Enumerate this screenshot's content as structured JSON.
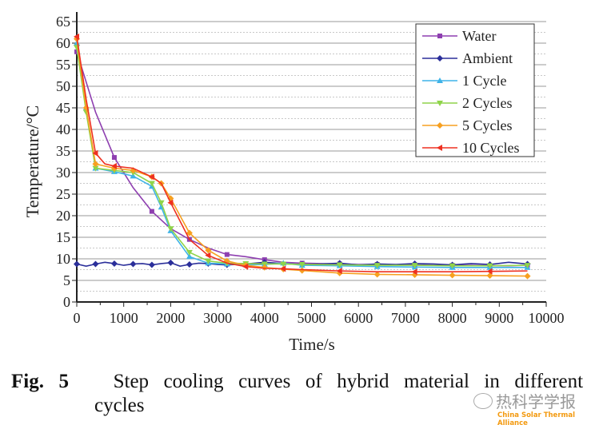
{
  "chart_data": {
    "type": "line",
    "title": "",
    "xlabel": "Time/s",
    "ylabel": "Temperature/°C",
    "xlim": [
      0,
      10000
    ],
    "ylim": [
      0,
      65
    ],
    "xticks": [
      0,
      1000,
      2000,
      3000,
      4000,
      5000,
      6000,
      7000,
      8000,
      9000,
      10000
    ],
    "yticks": [
      0,
      5,
      10,
      15,
      20,
      25,
      30,
      35,
      40,
      45,
      50,
      55,
      60,
      65
    ],
    "grid": true,
    "legend_position": "top-right",
    "series": [
      {
        "name": "Water",
        "color": "#8e3fb0",
        "marker": "square",
        "x": [
          0,
          400,
          800,
          1200,
          1600,
          2000,
          2400,
          2800,
          3200,
          3600,
          4000,
          4400,
          4800,
          5200,
          5600,
          6000,
          6400,
          6800,
          7200,
          7600,
          8000,
          8400,
          8800,
          9200,
          9600
        ],
        "y": [
          58,
          44,
          33.5,
          26.5,
          21,
          17,
          14.5,
          12.5,
          11,
          10.5,
          9.8,
          9.2,
          9,
          8.9,
          8.8,
          8.7,
          8.7,
          8.6,
          8.6,
          8.5,
          8.5,
          8.5,
          8.4,
          8.4,
          8.5
        ]
      },
      {
        "name": "Ambient",
        "color": "#2b2f9a",
        "marker": "diamond",
        "x": [
          0,
          200,
          400,
          600,
          800,
          1000,
          1200,
          1400,
          1600,
          1800,
          2000,
          2200,
          2400,
          2600,
          2800,
          3000,
          3200,
          3600,
          4000,
          4400,
          4800,
          5200,
          5600,
          6000,
          6400,
          6800,
          7200,
          7600,
          8000,
          8400,
          8800,
          9200,
          9600
        ],
        "y": [
          8.8,
          8.3,
          8.8,
          9.2,
          8.9,
          8.5,
          8.8,
          8.9,
          8.6,
          8.9,
          9.1,
          8.3,
          8.7,
          9.0,
          8.9,
          8.7,
          8.6,
          8.8,
          9.2,
          8.9,
          8.7,
          8.8,
          9.0,
          8.6,
          8.8,
          8.7,
          8.9,
          8.8,
          8.6,
          8.9,
          8.7,
          9.2,
          8.8
        ]
      },
      {
        "name": "1 Cycle",
        "color": "#3fb3e8",
        "marker": "triangle-up",
        "x": [
          0,
          200,
          400,
          800,
          1200,
          1600,
          1800,
          2000,
          2400,
          2800,
          3200,
          3600,
          4000,
          4400,
          4800,
          5600,
          6400,
          7200,
          8000,
          8800,
          9600
        ],
        "y": [
          60,
          45,
          31,
          30.2,
          29.2,
          26.8,
          22,
          16.5,
          10.5,
          9,
          8.8,
          8.6,
          8.7,
          9,
          8.5,
          8.4,
          8.2,
          8.1,
          8.0,
          8.0,
          8.0
        ]
      },
      {
        "name": "2 Cycles",
        "color": "#8fd44a",
        "marker": "triangle-down",
        "x": [
          0,
          200,
          400,
          800,
          1200,
          1600,
          1800,
          2000,
          2400,
          2800,
          3200,
          3600,
          4000,
          4400,
          4800,
          5600,
          6400,
          7200,
          8000,
          8800,
          9600
        ],
        "y": [
          59,
          44,
          31,
          30.5,
          30,
          27.5,
          23,
          17,
          11.5,
          9.5,
          9,
          8.9,
          8.8,
          8.8,
          8.7,
          8.6,
          8.5,
          8.5,
          8.4,
          8.4,
          8.5
        ]
      },
      {
        "name": "5 Cycles",
        "color": "#f7a020",
        "marker": "diamond",
        "x": [
          0,
          200,
          400,
          800,
          1200,
          1600,
          1800,
          2000,
          2400,
          2800,
          3200,
          3600,
          4000,
          4400,
          4800,
          5600,
          6400,
          7200,
          8000,
          8800,
          9600
        ],
        "y": [
          61,
          45,
          32,
          31,
          30.5,
          29,
          27.5,
          24,
          16,
          12,
          9.5,
          8.5,
          8,
          7.6,
          7.3,
          6.7,
          6.4,
          6.3,
          6.2,
          6.1,
          6.0
        ]
      },
      {
        "name": "10 Cycles",
        "color": "#ee3020",
        "marker": "triangle-left",
        "x": [
          0,
          200,
          400,
          600,
          800,
          1200,
          1600,
          1800,
          2000,
          2400,
          2800,
          3200,
          3600,
          4000,
          4400,
          4800,
          5600,
          6400,
          7200,
          8000,
          8800,
          9600
        ],
        "y": [
          61.5,
          47,
          34.5,
          32,
          31.5,
          31,
          29,
          27.5,
          23,
          14.5,
          10.8,
          9,
          8.2,
          7.8,
          7.7,
          7.5,
          7.2,
          7.0,
          7.0,
          7.0,
          7.1,
          7.2
        ]
      }
    ]
  },
  "caption": {
    "label": "Fig. 5",
    "text": "Step cooling curves of hybrid material in different",
    "text2": "cycles"
  },
  "watermark": {
    "name": "热科学学报",
    "org": "China Solar Thermal Alliance"
  }
}
